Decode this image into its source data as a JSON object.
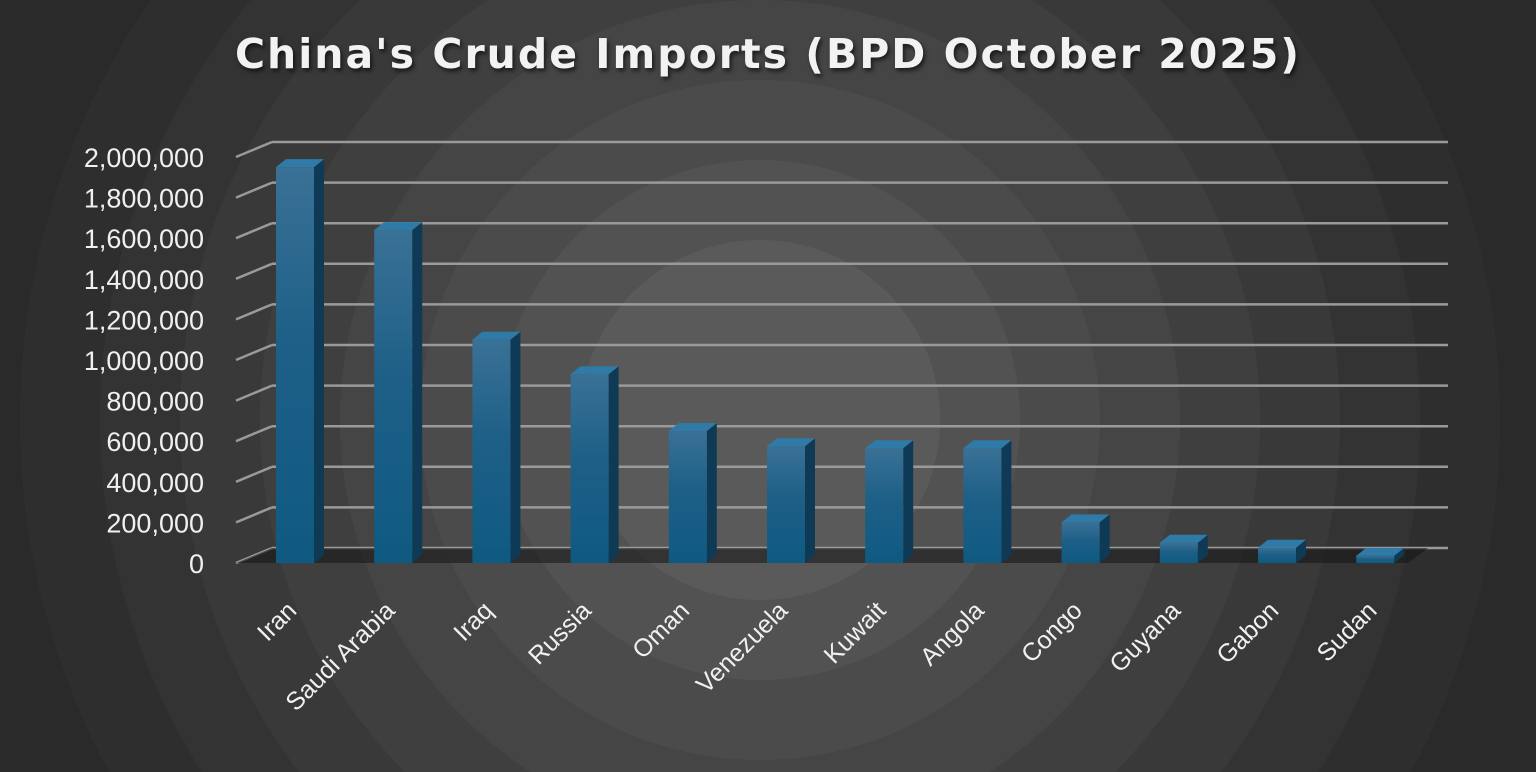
{
  "chart_data": {
    "type": "bar",
    "title": "China's Crude Imports (BPD October 2025)",
    "xlabel": "",
    "ylabel": "",
    "categories": [
      "Iran",
      "Saudi Arabia",
      "Iraq",
      "Russia",
      "Oman",
      "Venezuela",
      "Kuwait",
      "Angola",
      "Congo",
      "Guyana",
      "Gabon",
      "Sudan"
    ],
    "values": [
      1950000,
      1640000,
      1100000,
      930000,
      650000,
      575000,
      565000,
      565000,
      200000,
      100000,
      75000,
      35000
    ],
    "ylim": [
      0,
      2000000
    ],
    "yticks": [
      "0",
      "200,000",
      "400,000",
      "600,000",
      "800,000",
      "1,000,000",
      "1,200,000",
      "1,400,000",
      "1,600,000",
      "1,800,000",
      "2,000,000"
    ],
    "grid": true,
    "legend": "none",
    "colors": {
      "bar_front": "#1d5f87",
      "bar_side": "#0f3a55",
      "bar_top": "#2f7aa6",
      "gridline": "#9a9a9a",
      "text": "#f0f0f0"
    }
  }
}
